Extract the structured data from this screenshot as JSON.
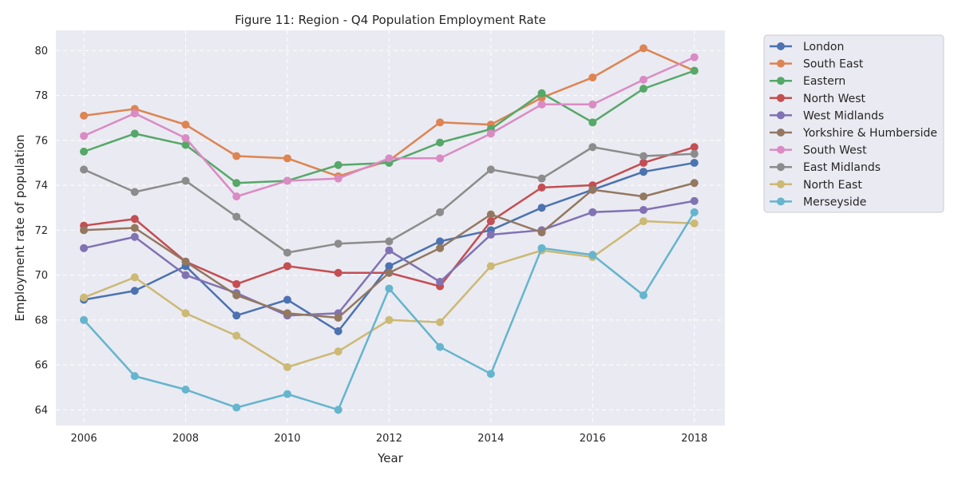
{
  "chart_data": {
    "type": "line",
    "title": "Figure 11: Region - Q4 Population Employment Rate",
    "xlabel": "Year",
    "ylabel": "Employment rate of population",
    "x": [
      2006,
      2007,
      2008,
      2009,
      2010,
      2011,
      2012,
      2013,
      2014,
      2015,
      2016,
      2017,
      2018
    ],
    "xlim": [
      2005.45,
      2018.6
    ],
    "ylim": [
      63.3,
      80.9
    ],
    "xticks": [
      2006,
      2008,
      2010,
      2012,
      2014,
      2016,
      2018
    ],
    "yticks": [
      64,
      66,
      68,
      70,
      72,
      74,
      76,
      78,
      80
    ],
    "grid": true,
    "legend_placement": "outside-right",
    "series": [
      {
        "name": "London",
        "color": "#4c72b0",
        "values": [
          68.9,
          69.3,
          70.4,
          68.2,
          68.9,
          67.5,
          70.4,
          71.5,
          72.0,
          73.0,
          73.8,
          74.6,
          75.0
        ]
      },
      {
        "name": "South East",
        "color": "#dd8452",
        "values": [
          77.1,
          77.4,
          76.7,
          75.3,
          75.2,
          74.4,
          75.1,
          76.8,
          76.7,
          77.9,
          78.8,
          80.1,
          79.1
        ]
      },
      {
        "name": "Eastern",
        "color": "#55a868",
        "values": [
          75.5,
          76.3,
          75.8,
          74.1,
          74.2,
          74.9,
          75.0,
          75.9,
          76.5,
          78.1,
          76.8,
          78.3,
          79.1
        ]
      },
      {
        "name": "North West",
        "color": "#c44e52",
        "values": [
          72.2,
          72.5,
          70.6,
          69.6,
          70.4,
          70.1,
          70.1,
          69.5,
          72.4,
          73.9,
          74.0,
          75.0,
          75.7
        ]
      },
      {
        "name": "West Midlands",
        "color": "#8172b3",
        "values": [
          71.2,
          71.7,
          70.0,
          69.2,
          68.2,
          68.3,
          71.1,
          69.7,
          71.8,
          72.0,
          72.8,
          72.9,
          73.3
        ]
      },
      {
        "name": "Yorkshire & Humberside",
        "color": "#937860",
        "values": [
          72.0,
          72.1,
          70.6,
          69.1,
          68.3,
          68.1,
          70.1,
          71.2,
          72.7,
          71.9,
          73.8,
          73.5,
          74.1
        ]
      },
      {
        "name": "South West",
        "color": "#da8bc3",
        "values": [
          76.2,
          77.2,
          76.1,
          73.5,
          74.2,
          74.3,
          75.2,
          75.2,
          76.3,
          77.6,
          77.6,
          78.7,
          79.7
        ]
      },
      {
        "name": "East Midlands",
        "color": "#8c8c8c",
        "values": [
          74.7,
          73.7,
          74.2,
          72.6,
          71.0,
          71.4,
          71.5,
          72.8,
          74.7,
          74.3,
          75.7,
          75.3,
          75.4
        ]
      },
      {
        "name": "North East",
        "color": "#ccb974",
        "values": [
          69.0,
          69.9,
          68.3,
          67.3,
          65.9,
          66.6,
          68.0,
          67.9,
          70.4,
          71.1,
          70.8,
          72.4,
          72.3
        ]
      },
      {
        "name": "Merseyside",
        "color": "#64b5cd",
        "values": [
          68.0,
          65.5,
          64.9,
          64.1,
          64.7,
          64.0,
          69.4,
          66.8,
          65.6,
          71.2,
          70.9,
          69.1,
          72.8
        ]
      }
    ]
  }
}
